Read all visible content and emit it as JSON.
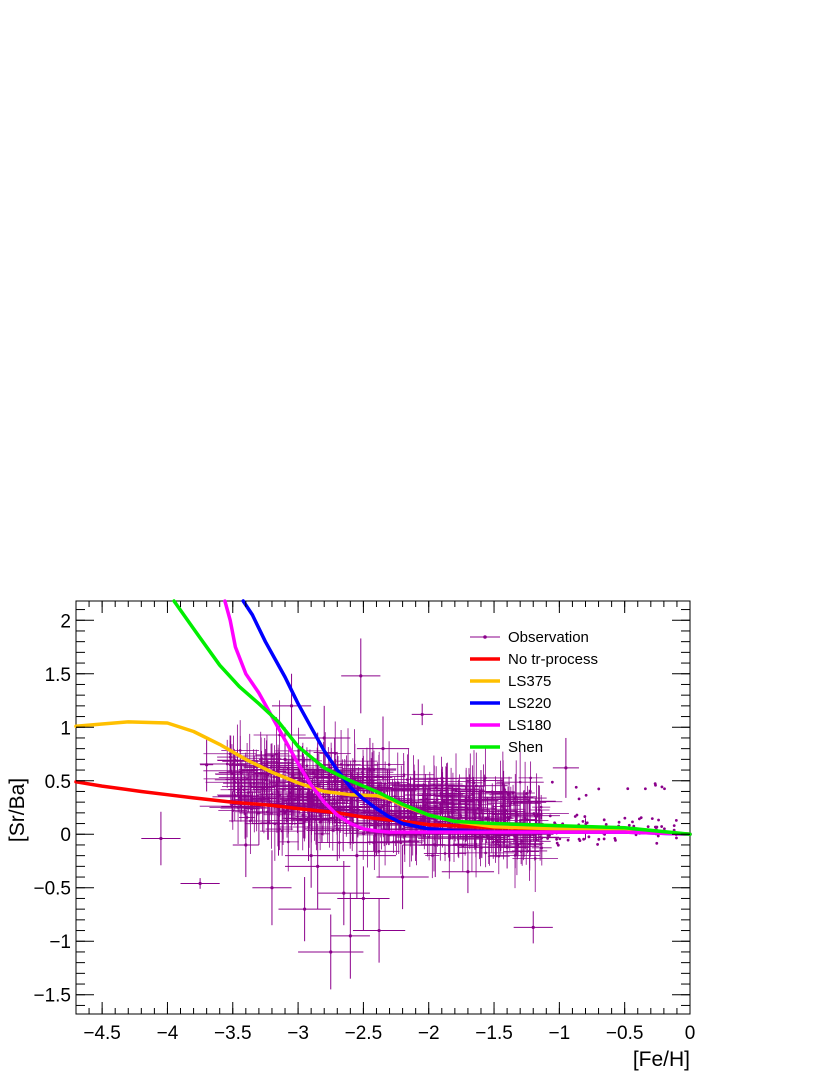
{
  "chart_data": {
    "type": "scatter",
    "title": "",
    "xlabel": "[Fe/H]",
    "ylabel": "[Sr/Ba]",
    "xlim": [
      -4.7,
      0
    ],
    "ylim": [
      -1.68,
      2.18
    ],
    "x_ticks": [
      -4.5,
      -4,
      -3.5,
      -3,
      -2.5,
      -2,
      -1.5,
      -1,
      -0.5,
      0
    ],
    "x_tick_labels": [
      "−4.5",
      "−4",
      "−3.5",
      "−3",
      "−2.5",
      "−2",
      "−1.5",
      "−1",
      "−0.5",
      "0"
    ],
    "y_ticks": [
      -1.5,
      -1,
      -0.5,
      0,
      0.5,
      1,
      1.5,
      2
    ],
    "y_tick_labels": [
      "−1.5",
      "−1",
      "−0.5",
      "0",
      "0.5",
      "1",
      "1.5",
      "2"
    ],
    "grid": false,
    "legend_position": "top-right",
    "legend": [
      {
        "label": "Observation",
        "color": "#8b008b",
        "kind": "errorbar"
      },
      {
        "label": "No tr-process",
        "color": "#ff0000",
        "kind": "line"
      },
      {
        "label": "LS375",
        "color": "#ffc000",
        "kind": "line"
      },
      {
        "label": "LS220",
        "color": "#0000ff",
        "kind": "line"
      },
      {
        "label": "LS180",
        "color": "#ff00ff",
        "kind": "line"
      },
      {
        "label": "Shen",
        "color": "#00ee00",
        "kind": "line"
      }
    ],
    "series": [
      {
        "name": "No tr-process",
        "color": "#ff0000",
        "x": [
          -4.7,
          -4.5,
          -4.2,
          -4.0,
          -3.8,
          -3.5,
          -3.2,
          -3.0,
          -2.7,
          -2.5,
          -2.2,
          -2.0,
          -1.5,
          -1.0,
          -0.5,
          0.0
        ],
        "y": [
          0.49,
          0.45,
          0.4,
          0.37,
          0.34,
          0.3,
          0.27,
          0.24,
          0.2,
          0.16,
          0.12,
          0.09,
          0.06,
          0.05,
          0.04,
          0.0
        ]
      },
      {
        "name": "LS375",
        "color": "#ffc000",
        "x": [
          -4.7,
          -4.5,
          -4.3,
          -4.0,
          -3.8,
          -3.6,
          -3.4,
          -3.2,
          -3.0,
          -2.8,
          -2.6,
          -2.4,
          -2.3,
          -2.2,
          -2.0,
          -1.8,
          -1.5,
          -1.0,
          -0.5,
          0.0
        ],
        "y": [
          1.01,
          1.03,
          1.05,
          1.04,
          0.96,
          0.84,
          0.7,
          0.58,
          0.48,
          0.4,
          0.37,
          0.36,
          0.33,
          0.27,
          0.18,
          0.12,
          0.07,
          0.05,
          0.03,
          0.0
        ]
      },
      {
        "name": "LS220",
        "color": "#0000ff",
        "x": [
          -3.42,
          -3.35,
          -3.25,
          -3.1,
          -3.0,
          -2.9,
          -2.8,
          -2.7,
          -2.6,
          -2.5,
          -2.4,
          -2.3,
          -2.2,
          -2.0,
          -1.8,
          -1.5,
          -1.0,
          -0.5,
          0.0
        ],
        "y": [
          2.18,
          2.05,
          1.8,
          1.47,
          1.22,
          1.0,
          0.78,
          0.6,
          0.44,
          0.33,
          0.24,
          0.16,
          0.1,
          0.05,
          0.03,
          0.02,
          0.02,
          0.02,
          0.0
        ]
      },
      {
        "name": "LS180",
        "color": "#ff00ff",
        "x": [
          -3.56,
          -3.52,
          -3.48,
          -3.4,
          -3.3,
          -3.2,
          -3.1,
          -3.0,
          -2.9,
          -2.8,
          -2.7,
          -2.6,
          -2.5,
          -2.4,
          -2.3,
          -2.0,
          -1.5,
          -1.0,
          -0.5,
          0.0
        ],
        "y": [
          2.18,
          2.0,
          1.75,
          1.5,
          1.32,
          1.1,
          0.88,
          0.66,
          0.46,
          0.3,
          0.18,
          0.1,
          0.05,
          0.03,
          0.02,
          0.02,
          0.02,
          0.02,
          0.02,
          0.0
        ]
      },
      {
        "name": "Shen",
        "color": "#00ee00",
        "x": [
          -3.95,
          -3.8,
          -3.6,
          -3.45,
          -3.3,
          -3.15,
          -3.0,
          -2.8,
          -2.6,
          -2.4,
          -2.2,
          -2.0,
          -1.8,
          -1.5,
          -1.0,
          -0.5,
          0.0
        ],
        "y": [
          2.18,
          1.92,
          1.58,
          1.38,
          1.22,
          1.05,
          0.82,
          0.62,
          0.5,
          0.4,
          0.28,
          0.18,
          0.12,
          0.1,
          0.08,
          0.06,
          0.0
        ]
      }
    ],
    "observations": {
      "name": "Observation",
      "color": "#8b008b",
      "points": [
        {
          "x": -4.05,
          "y": -0.04,
          "ex": 0.15,
          "ey": 0.25
        },
        {
          "x": -3.75,
          "y": -0.46,
          "ex": 0.15,
          "ey": 0.05
        },
        {
          "x": -3.7,
          "y": 0.65,
          "ex": 0.05,
          "ey": 0.25
        },
        {
          "x": -3.1,
          "y": 0.7,
          "ex": 0.2,
          "ey": 0.3
        },
        {
          "x": -3.0,
          "y": 0.35,
          "ex": 0.3,
          "ey": 0.5
        },
        {
          "x": -2.92,
          "y": 0.15,
          "ex": 0.2,
          "ey": 0.4
        },
        {
          "x": -2.85,
          "y": -0.3,
          "ex": 0.25,
          "ey": 0.4
        },
        {
          "x": -2.8,
          "y": 0.9,
          "ex": 0.2,
          "ey": 0.3
        },
        {
          "x": -2.75,
          "y": -1.1,
          "ex": 0.25,
          "ey": 0.35
        },
        {
          "x": -2.72,
          "y": 0.5,
          "ex": 0.3,
          "ey": 0.4
        },
        {
          "x": -2.65,
          "y": -0.55,
          "ex": 0.2,
          "ey": 0.3
        },
        {
          "x": -2.6,
          "y": 0.25,
          "ex": 0.25,
          "ey": 0.35
        },
        {
          "x": -2.55,
          "y": -0.2,
          "ex": 0.3,
          "ey": 0.4
        },
        {
          "x": -2.52,
          "y": 1.48,
          "ex": 0.15,
          "ey": 0.35
        },
        {
          "x": -2.45,
          "y": 0.6,
          "ex": 0.2,
          "ey": 0.3
        },
        {
          "x": -2.38,
          "y": -0.9,
          "ex": 0.2,
          "ey": 0.3
        },
        {
          "x": -2.3,
          "y": 0.3,
          "ex": 0.25,
          "ey": 0.3
        },
        {
          "x": -2.2,
          "y": -0.4,
          "ex": 0.2,
          "ey": 0.3
        },
        {
          "x": -2.08,
          "y": 0.45,
          "ex": 0.2,
          "ey": 0.25
        },
        {
          "x": -2.05,
          "y": 1.12,
          "ex": 0.08,
          "ey": 0.1
        },
        {
          "x": -1.95,
          "y": -0.1,
          "ex": 0.25,
          "ey": 0.3
        },
        {
          "x": -1.82,
          "y": 0.2,
          "ex": 0.2,
          "ey": 0.25
        },
        {
          "x": -1.7,
          "y": -0.35,
          "ex": 0.2,
          "ey": 0.2
        },
        {
          "x": -1.55,
          "y": 0.15,
          "ex": 0.2,
          "ey": 0.2
        },
        {
          "x": -1.4,
          "y": -0.12,
          "ex": 0.15,
          "ey": 0.2
        },
        {
          "x": -1.2,
          "y": -0.87,
          "ex": 0.15,
          "ey": 0.15
        },
        {
          "x": -0.95,
          "y": 0.62,
          "ex": 0.1,
          "ey": 0.28
        },
        {
          "x": -0.8,
          "y": 0.05,
          "ex": 0.15,
          "ey": 0.1
        },
        {
          "x": -3.4,
          "y": -0.1,
          "ex": 0.1,
          "ey": 0.3
        },
        {
          "x": -3.3,
          "y": 0.2,
          "ex": 0.15,
          "ey": 0.3
        },
        {
          "x": -3.2,
          "y": -0.5,
          "ex": 0.15,
          "ey": 0.35
        },
        {
          "x": -2.95,
          "y": -0.7,
          "ex": 0.2,
          "ey": 0.3
        },
        {
          "x": -2.7,
          "y": 0.05,
          "ex": 0.25,
          "ey": 0.3
        },
        {
          "x": -2.5,
          "y": -0.6,
          "ex": 0.2,
          "ey": 0.3
        },
        {
          "x": -2.35,
          "y": 0.8,
          "ex": 0.2,
          "ey": 0.3
        },
        {
          "x": -2.1,
          "y": 0.0,
          "ex": 0.25,
          "ey": 0.25
        },
        {
          "x": -1.6,
          "y": 0.4,
          "ex": 0.2,
          "ey": 0.2
        },
        {
          "x": -1.3,
          "y": 0.1,
          "ex": 0.15,
          "ey": 0.2
        },
        {
          "x": -3.05,
          "y": 1.2,
          "ex": 0.15,
          "ey": 0.3
        },
        {
          "x": -2.85,
          "y": 0.6,
          "ex": 0.2,
          "ey": 0.35
        },
        {
          "x": -2.6,
          "y": -0.95,
          "ex": 0.15,
          "ey": 0.4
        },
        {
          "x": -3.15,
          "y": 0.1,
          "ex": 0.2,
          "ey": 0.3
        },
        {
          "x": -2.9,
          "y": -0.2,
          "ex": 0.2,
          "ey": 0.3
        },
        {
          "x": -2.4,
          "y": 0.1,
          "ex": 0.25,
          "ey": 0.3
        },
        {
          "x": -2.0,
          "y": 0.25,
          "ex": 0.2,
          "ey": 0.25
        }
      ]
    }
  }
}
